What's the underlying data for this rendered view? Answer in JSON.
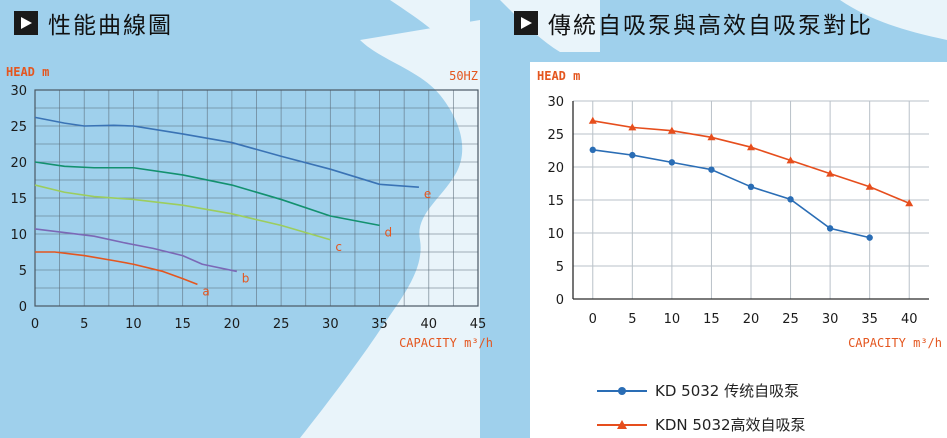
{
  "headings": {
    "left": "性能曲線圖",
    "right": "傳統自吸泵與高效自吸泵對比"
  },
  "chart_data": [
    {
      "type": "line",
      "title": "",
      "ylabel": "HEAD  m",
      "xlabel": "CAPACITY  m³/h",
      "note": "50HZ",
      "xlim": [
        0,
        45
      ],
      "ylim": [
        0,
        30
      ],
      "xticks": [
        0,
        5,
        10,
        15,
        20,
        25,
        30,
        35,
        40,
        45
      ],
      "yticks": [
        0,
        5,
        10,
        15,
        20,
        25,
        30
      ],
      "grid": true,
      "series": [
        {
          "name": "a",
          "color": "#e4561f",
          "x": [
            0,
            2,
            5,
            8,
            10,
            13,
            15,
            16.5
          ],
          "y": [
            7.5,
            7.5,
            7,
            6.3,
            5.8,
            4.8,
            3.8,
            3
          ]
        },
        {
          "name": "b",
          "color": "#7b68b6",
          "x": [
            0,
            3,
            6,
            9,
            12,
            15,
            17,
            20.5
          ],
          "y": [
            10.7,
            10.2,
            9.7,
            8.8,
            8,
            7,
            5.8,
            4.8
          ]
        },
        {
          "name": "c",
          "color": "#9ccd5e",
          "x": [
            0,
            3,
            6,
            10,
            15,
            20,
            25,
            30
          ],
          "y": [
            16.8,
            15.8,
            15.2,
            14.8,
            14,
            12.8,
            11.2,
            9.2
          ]
        },
        {
          "name": "d",
          "color": "#13916f",
          "x": [
            0,
            3,
            6,
            10,
            15,
            20,
            25,
            30,
            35
          ],
          "y": [
            20,
            19.4,
            19.2,
            19.2,
            18.2,
            16.8,
            14.8,
            12.5,
            11.2
          ]
        },
        {
          "name": "e",
          "color": "#3a73b5",
          "x": [
            0,
            3,
            5,
            8,
            10,
            15,
            20,
            25,
            30,
            35,
            39
          ],
          "y": [
            26.2,
            25.4,
            25,
            25.1,
            25,
            23.9,
            22.7,
            20.8,
            19,
            16.9,
            16.5
          ]
        }
      ]
    },
    {
      "type": "line",
      "title": "",
      "ylabel": "HEAD   m",
      "xlabel": "CAPACITY  m³/h",
      "xlim": [
        -2.5,
        42.5
      ],
      "ylim": [
        0,
        30
      ],
      "xticks": [
        0,
        5,
        10,
        15,
        20,
        25,
        30,
        35,
        40
      ],
      "yticks": [
        0,
        5,
        10,
        15,
        20,
        25,
        30
      ],
      "grid": true,
      "series": [
        {
          "name": "KD 5032 传统自吸泵",
          "color": "#2a6db5",
          "marker": "circle",
          "x": [
            0,
            5,
            10,
            15,
            20,
            25,
            30,
            35
          ],
          "y": [
            22.6,
            21.8,
            20.7,
            19.6,
            17,
            15.1,
            10.7,
            9.3
          ]
        },
        {
          "name": "KDN 5032高效自吸泵",
          "color": "#e64e1d",
          "marker": "triangle",
          "x": [
            0,
            5,
            10,
            15,
            20,
            25,
            30,
            35,
            40
          ],
          "y": [
            27,
            26,
            25.5,
            24.5,
            23,
            21,
            19,
            17,
            14.5
          ]
        }
      ]
    }
  ]
}
